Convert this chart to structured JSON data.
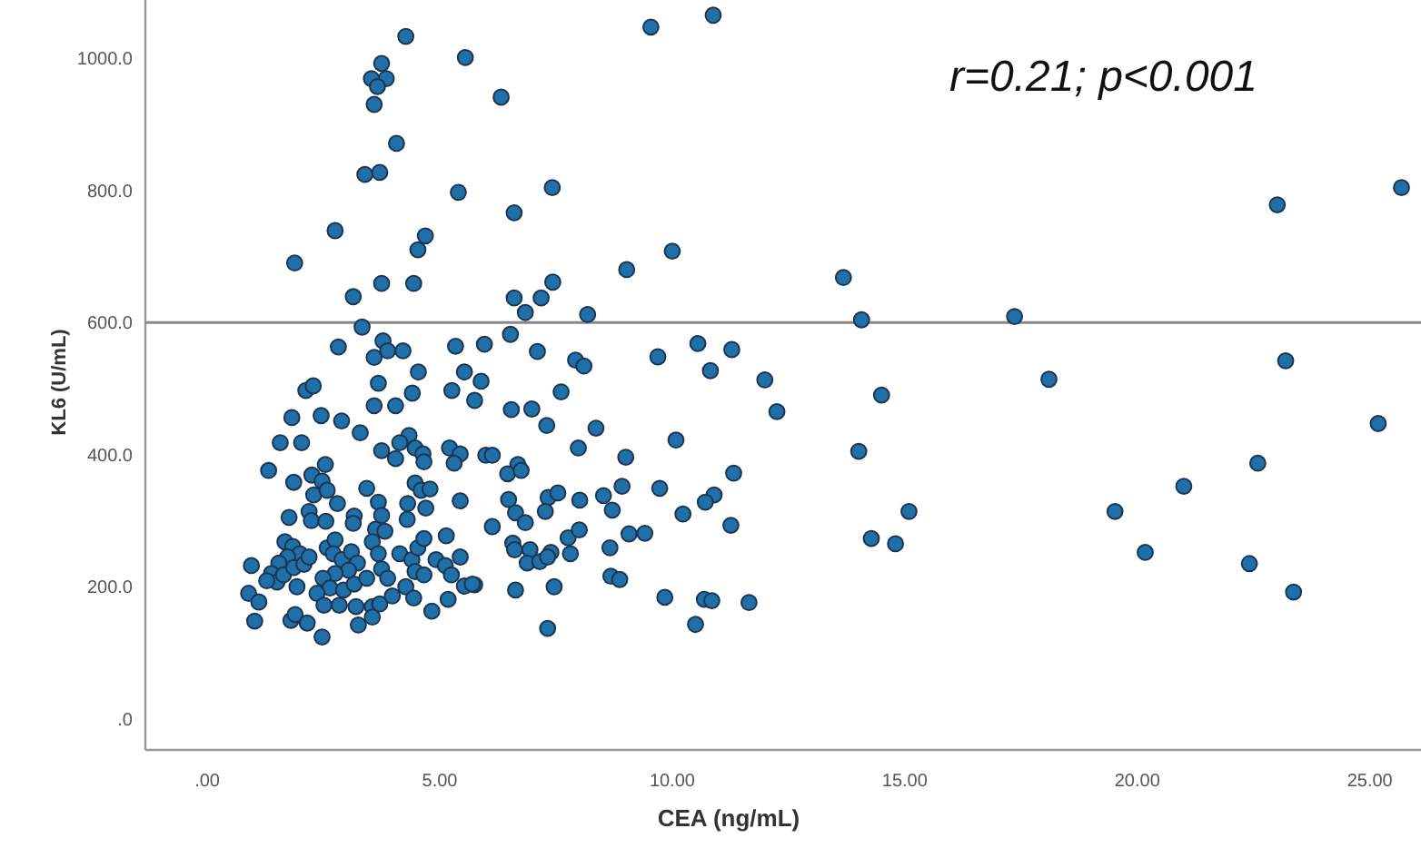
{
  "chart_data": {
    "type": "scatter",
    "xlabel": "CEA (ng/mL)",
    "ylabel": "KL6 (U/mL)",
    "annotations": [
      "r=0.21; p<0.001"
    ],
    "xlim": [
      -1.33,
      26.1
    ],
    "ylim": [
      -47,
      1088
    ],
    "xticks": [
      {
        "value": 0,
        "label": ".00"
      },
      {
        "value": 5,
        "label": "5.00"
      },
      {
        "value": 10,
        "label": "10.00"
      },
      {
        "value": 15,
        "label": "15.00"
      },
      {
        "value": 20,
        "label": "20.00"
      },
      {
        "value": 25,
        "label": "25.00"
      }
    ],
    "yticks": [
      {
        "value": 0,
        "label": ".0"
      },
      {
        "value": 200,
        "label": "200.0"
      },
      {
        "value": 400,
        "label": "400.0"
      },
      {
        "value": 600,
        "label": "600.0"
      },
      {
        "value": 800,
        "label": "800.0"
      },
      {
        "value": 1000,
        "label": "1000.0"
      }
    ],
    "grid": false,
    "marker": "circle",
    "ref_lines": [
      {
        "axis": "y",
        "value": 600,
        "color": "#888888"
      }
    ],
    "series": [
      {
        "color": "#1f6fa8",
        "x": [
          4.27,
          5.55,
          3.75,
          3.53,
          3.85,
          3.66,
          3.59,
          4.07,
          3.39,
          3.71,
          5.4,
          2.75,
          4.69,
          4.53,
          1.88,
          3.75,
          4.44,
          3.14,
          3.33,
          2.82,
          3.78,
          3.88,
          4.21,
          3.59,
          5.34,
          9.54,
          10.88,
          6.32,
          7.42,
          6.6,
          10.0,
          9.02,
          7.43,
          6.6,
          7.18,
          6.84,
          8.18,
          6.52,
          5.96,
          7.1,
          7.92,
          8.1,
          9.69,
          10.55,
          11.28,
          10.82,
          11.99,
          5.89,
          5.75,
          7.61,
          6.54,
          6.98,
          7.3,
          8.36,
          12.25,
          10.08,
          7.98,
          9.0,
          5.99,
          6.13,
          6.68,
          6.46,
          6.75,
          11.32,
          8.92,
          9.73,
          6.48,
          7.33,
          7.54,
          8.01,
          8.52,
          10.9,
          10.71,
          6.63,
          7.27,
          8.71,
          10.23,
          6.84,
          6.13,
          11.26,
          7.76,
          8.0,
          9.07,
          9.41,
          6.57,
          6.61,
          6.94,
          7.39,
          7.81,
          8.66,
          6.88,
          7.15,
          7.32,
          8.68,
          8.87,
          5.75,
          6.63,
          7.46,
          9.84,
          10.69,
          10.85,
          11.65,
          10.5,
          7.32,
          13.68,
          14.07,
          17.36,
          23.01,
          25.68,
          18.1,
          23.19,
          14.5,
          14.01,
          25.18,
          22.59,
          21.0,
          15.09,
          19.52,
          14.28,
          14.8,
          20.17,
          22.41,
          23.36,
          4.54,
          5.53,
          3.68,
          2.12,
          2.28,
          5.26,
          4.41,
          3.59,
          4.05,
          1.82,
          2.45,
          2.89,
          3.29,
          1.57,
          2.03,
          4.34,
          4.14,
          4.47,
          4.64,
          3.75,
          4.05,
          4.66,
          5.21,
          5.44,
          5.31,
          1.32,
          2.54,
          2.25,
          1.86,
          2.47,
          2.29,
          2.58,
          2.8,
          3.43,
          4.47,
          4.6,
          4.79,
          3.68,
          4.31,
          4.7,
          5.44,
          1.76,
          2.19,
          2.24,
          2.55,
          3.16,
          3.14,
          3.75,
          4.3,
          3.62,
          3.82,
          1.67,
          1.84,
          1.99,
          1.73,
          1.54,
          1.38,
          1.5,
          1.64,
          1.86,
          2.08,
          2.19,
          0.95,
          2.58,
          2.75,
          2.71,
          2.9,
          3.1,
          3.23,
          3.04,
          2.75,
          2.49,
          2.64,
          2.93,
          3.16,
          3.43,
          3.55,
          3.68,
          3.75,
          3.88,
          4.14,
          4.4,
          4.53,
          4.66,
          4.47,
          4.66,
          4.92,
          5.12,
          5.25,
          5.44,
          5.14,
          4.27,
          4.44,
          4.83,
          5.18,
          5.53,
          5.7,
          0.89,
          1.11,
          1.02,
          1.8,
          1.89,
          2.15,
          2.47,
          3.2,
          3.55,
          3.71,
          3.25,
          3.55,
          2.36,
          2.51,
          2.84,
          1.93,
          1.28,
          3.98
        ],
        "values": [
          1033,
          1001,
          992,
          969,
          969,
          957,
          930,
          871,
          824,
          827,
          797,
          739,
          731,
          710,
          690,
          659,
          659,
          639,
          593,
          563,
          572,
          557,
          557,
          547,
          564,
          1047,
          1065,
          941,
          804,
          766,
          708,
          680,
          661,
          637,
          637,
          615,
          612,
          582,
          567,
          556,
          543,
          534,
          548,
          568,
          559,
          527,
          513,
          511,
          482,
          495,
          468,
          469,
          444,
          440,
          465,
          422,
          410,
          396,
          399,
          399,
          385,
          371,
          376,
          372,
          352,
          349,
          332,
          335,
          342,
          331,
          338,
          339,
          328,
          312,
          314,
          316,
          310,
          297,
          291,
          293,
          274,
          286,
          280,
          281,
          266,
          256,
          256,
          252,
          250,
          259,
          236,
          238,
          245,
          216,
          211,
          203,
          195,
          200,
          184,
          181,
          179,
          176,
          143,
          137,
          668,
          604,
          609,
          778,
          804,
          514,
          542,
          490,
          405,
          447,
          387,
          352,
          314,
          314,
          273,
          265,
          252,
          235,
          192,
          525,
          525,
          508,
          497,
          504,
          497,
          493,
          474,
          474,
          456,
          459,
          451,
          433,
          418,
          418,
          429,
          418,
          410,
          401,
          406,
          394,
          389,
          410,
          401,
          387,
          376,
          385,
          369,
          358,
          360,
          339,
          346,
          326,
          349,
          357,
          346,
          348,
          328,
          326,
          319,
          330,
          305,
          314,
          300,
          299,
          307,
          296,
          308,
          302,
          287,
          284,
          268,
          261,
          250,
          245,
          236,
          220,
          207,
          218,
          229,
          234,
          245,
          232,
          259,
          271,
          250,
          241,
          253,
          236,
          225,
          220,
          213,
          198,
          195,
          204,
          213,
          268,
          250,
          227,
          213,
          250,
          241,
          259,
          273,
          223,
          218,
          241,
          232,
          218,
          245,
          277,
          200,
          183,
          163,
          181,
          201,
          204,
          190,
          177,
          148,
          149,
          158,
          145,
          124,
          170,
          170,
          174,
          142,
          154,
          190,
          172,
          172,
          200,
          209,
          186
        ]
      }
    ]
  }
}
